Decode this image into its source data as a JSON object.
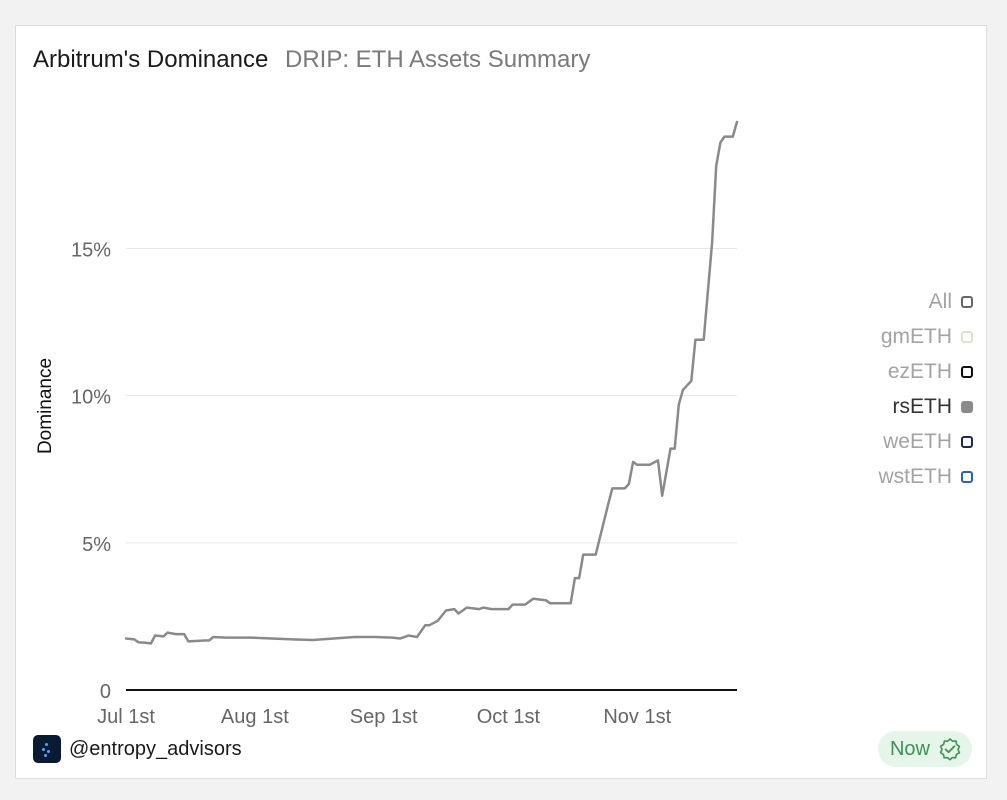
{
  "header": {
    "title": "Arbitrum's Dominance",
    "subtitle": "DRIP: ETH Assets Summary"
  },
  "legend": [
    {
      "label": "All",
      "color": "#666666",
      "filled": false,
      "active": false
    },
    {
      "label": "gmETH",
      "color": "#e6e0cf",
      "filled": false,
      "active": false
    },
    {
      "label": "ezETH",
      "color": "#111111",
      "filled": false,
      "active": false
    },
    {
      "label": "rsETH",
      "color": "#8a8a8a",
      "filled": true,
      "active": true
    },
    {
      "label": "weETH",
      "color": "#1c2a59",
      "filled": false,
      "active": false
    },
    {
      "label": "wstETH",
      "color": "#2f5fb0",
      "filled": false,
      "active": false
    }
  ],
  "footer": {
    "brand": "@entropy_advisors",
    "status": "Now"
  },
  "chart_data": {
    "type": "line",
    "ylabel": "Dominance",
    "xlabel": "",
    "ylim": [
      0,
      19.5
    ],
    "xlim": [
      "2024-07-01",
      "2024-11-25"
    ],
    "y_ticks": [
      {
        "value": 0,
        "label": "0"
      },
      {
        "value": 5,
        "label": "5%"
      },
      {
        "value": 10,
        "label": "10%"
      },
      {
        "value": 15,
        "label": "15%"
      }
    ],
    "x_ticks": [
      {
        "date": "2024-07-01",
        "label": "Jul 1st"
      },
      {
        "date": "2024-08-01",
        "label": "Aug 1st"
      },
      {
        "date": "2024-09-01",
        "label": "Sep 1st"
      },
      {
        "date": "2024-10-01",
        "label": "Oct 1st"
      },
      {
        "date": "2024-11-01",
        "label": "Nov 1st"
      }
    ],
    "grid": true,
    "series": [
      {
        "color": "#8a8a8a",
        "points": [
          [
            "2024-07-01",
            1.75
          ],
          [
            "2024-07-03",
            1.72
          ],
          [
            "2024-07-04",
            1.62
          ],
          [
            "2024-07-06",
            1.6
          ],
          [
            "2024-07-07",
            1.58
          ],
          [
            "2024-07-08",
            1.85
          ],
          [
            "2024-07-10",
            1.82
          ],
          [
            "2024-07-11",
            1.95
          ],
          [
            "2024-07-13",
            1.9
          ],
          [
            "2024-07-15",
            1.9
          ],
          [
            "2024-07-16",
            1.65
          ],
          [
            "2024-07-20",
            1.68
          ],
          [
            "2024-07-21",
            1.68
          ],
          [
            "2024-07-22",
            1.8
          ],
          [
            "2024-07-25",
            1.78
          ],
          [
            "2024-07-31",
            1.78
          ],
          [
            "2024-08-05",
            1.75
          ],
          [
            "2024-08-10",
            1.72
          ],
          [
            "2024-08-15",
            1.7
          ],
          [
            "2024-08-20",
            1.75
          ],
          [
            "2024-08-25",
            1.8
          ],
          [
            "2024-08-30",
            1.8
          ],
          [
            "2024-09-03",
            1.78
          ],
          [
            "2024-09-05",
            1.75
          ],
          [
            "2024-09-07",
            1.85
          ],
          [
            "2024-09-09",
            1.8
          ],
          [
            "2024-09-10",
            2.0
          ],
          [
            "2024-09-11",
            2.2
          ],
          [
            "2024-09-12",
            2.2
          ],
          [
            "2024-09-14",
            2.35
          ],
          [
            "2024-09-16",
            2.7
          ],
          [
            "2024-09-18",
            2.75
          ],
          [
            "2024-09-19",
            2.6
          ],
          [
            "2024-09-20",
            2.7
          ],
          [
            "2024-09-21",
            2.8
          ],
          [
            "2024-09-24",
            2.75
          ],
          [
            "2024-09-25",
            2.8
          ],
          [
            "2024-09-27",
            2.75
          ],
          [
            "2024-09-30",
            2.75
          ],
          [
            "2024-10-01",
            2.75
          ],
          [
            "2024-10-02",
            2.9
          ],
          [
            "2024-10-05",
            2.9
          ],
          [
            "2024-10-07",
            3.1
          ],
          [
            "2024-10-10",
            3.05
          ],
          [
            "2024-10-11",
            2.95
          ],
          [
            "2024-10-16",
            2.95
          ],
          [
            "2024-10-17",
            3.8
          ],
          [
            "2024-10-18",
            3.8
          ],
          [
            "2024-10-19",
            4.6
          ],
          [
            "2024-10-22",
            4.6
          ],
          [
            "2024-10-25",
            6.3
          ],
          [
            "2024-10-26",
            6.85
          ],
          [
            "2024-10-29",
            6.85
          ],
          [
            "2024-10-30",
            7.0
          ],
          [
            "2024-10-31",
            7.75
          ],
          [
            "2024-11-01",
            7.65
          ],
          [
            "2024-11-04",
            7.65
          ],
          [
            "2024-11-06",
            7.8
          ],
          [
            "2024-11-07",
            6.6
          ],
          [
            "2024-11-09",
            8.2
          ],
          [
            "2024-11-10",
            8.2
          ],
          [
            "2024-11-11",
            9.7
          ],
          [
            "2024-11-12",
            10.2
          ],
          [
            "2024-11-14",
            10.5
          ],
          [
            "2024-11-15",
            11.9
          ],
          [
            "2024-11-17",
            11.9
          ],
          [
            "2024-11-19",
            15.2
          ],
          [
            "2024-11-20",
            17.8
          ],
          [
            "2024-11-21",
            18.6
          ],
          [
            "2024-11-22",
            18.8
          ],
          [
            "2024-11-24",
            18.8
          ],
          [
            "2024-11-25",
            19.3
          ]
        ]
      }
    ]
  }
}
